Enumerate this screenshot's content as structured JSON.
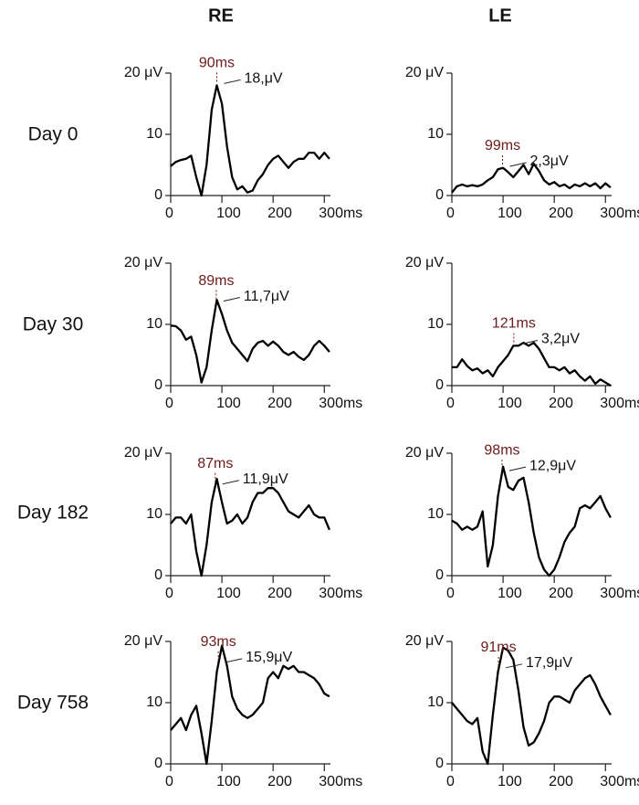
{
  "columns": [
    "RE",
    "LE"
  ],
  "rows": [
    "Day 0",
    "Day 30",
    "Day 182",
    "Day 758"
  ],
  "chart_data": [
    {
      "type": "line",
      "x": [
        0,
        10,
        20,
        30,
        40,
        50,
        60,
        70,
        80,
        90,
        100,
        110,
        120,
        130,
        140,
        150,
        160,
        170,
        180,
        190,
        200,
        210,
        220,
        230,
        240,
        250,
        260,
        270,
        280,
        290,
        300,
        310
      ],
      "values": [
        4.8,
        5.5,
        5.8,
        6.0,
        6.5,
        3,
        0,
        5,
        14,
        18,
        15,
        8,
        3,
        1,
        1.5,
        0.5,
        0.8,
        2.5,
        3.5,
        5,
        6,
        6.5,
        5.5,
        4.5,
        5.5,
        6,
        6,
        7,
        7,
        6,
        7,
        6
      ],
      "color": "#000000",
      "xlim": [
        0,
        312
      ],
      "ylim": [
        0,
        20
      ],
      "xticks": [
        0,
        100,
        200,
        {
          "value": 300,
          "label": "300ms"
        }
      ],
      "yticks": [
        0,
        10,
        {
          "value": 20,
          "label": "20 μV"
        }
      ],
      "peak": {
        "x": 90,
        "label": "90ms",
        "amplitude": "18,μV"
      }
    },
    {
      "type": "line",
      "x": [
        0,
        10,
        20,
        30,
        40,
        50,
        60,
        70,
        80,
        90,
        100,
        110,
        120,
        130,
        140,
        150,
        160,
        170,
        180,
        190,
        200,
        210,
        220,
        230,
        240,
        250,
        260,
        270,
        280,
        290,
        300,
        310
      ],
      "values": [
        0.5,
        1.5,
        1.8,
        1.5,
        1.7,
        1.5,
        1.8,
        2.5,
        3,
        4.3,
        4.5,
        3.8,
        3,
        4,
        5,
        3.5,
        5.2,
        4,
        2.5,
        1.8,
        2.2,
        1.5,
        1.8,
        1.2,
        1.8,
        1.5,
        2,
        1.5,
        2,
        1.2,
        2,
        1.3
      ],
      "color": "#000000",
      "xlim": [
        0,
        312
      ],
      "ylim": [
        0,
        20
      ],
      "xticks": [
        0,
        100,
        200,
        {
          "value": 300,
          "label": "300ms"
        }
      ],
      "yticks": [
        0,
        10,
        {
          "value": 20,
          "label": "20 μV"
        }
      ],
      "peak": {
        "x": 99,
        "label": "99ms",
        "amplitude": "2,3μV"
      }
    },
    {
      "type": "line",
      "x": [
        0,
        10,
        20,
        30,
        40,
        50,
        60,
        70,
        80,
        90,
        100,
        110,
        120,
        130,
        140,
        150,
        160,
        170,
        180,
        190,
        200,
        210,
        220,
        230,
        240,
        250,
        260,
        270,
        280,
        290,
        300,
        310
      ],
      "values": [
        9.8,
        9.7,
        9.0,
        7.5,
        8,
        5,
        0.5,
        3,
        9,
        14,
        11.7,
        9,
        7,
        6,
        5,
        4,
        6,
        7,
        7.3,
        6.5,
        7.2,
        6.5,
        5.5,
        5,
        5.5,
        4.7,
        4.2,
        5,
        6.5,
        7.3,
        6.5,
        5.5
      ],
      "color": "#000000",
      "xlim": [
        0,
        312
      ],
      "ylim": [
        0,
        20
      ],
      "xticks": [
        0,
        100,
        200,
        {
          "value": 300,
          "label": "300ms"
        }
      ],
      "yticks": [
        0,
        10,
        {
          "value": 20,
          "label": "20 μV"
        }
      ],
      "peak": {
        "x": 89,
        "label": "89ms",
        "amplitude": "11,7μV"
      }
    },
    {
      "type": "line",
      "x": [
        0,
        10,
        20,
        30,
        40,
        50,
        60,
        70,
        80,
        90,
        100,
        110,
        120,
        130,
        140,
        150,
        160,
        170,
        180,
        190,
        200,
        210,
        220,
        230,
        240,
        250,
        260,
        270,
        280,
        290,
        300,
        310
      ],
      "values": [
        3,
        3,
        4.3,
        3.2,
        2.5,
        2.8,
        2,
        2.5,
        1.5,
        3,
        4,
        5,
        6.5,
        6.5,
        7,
        6.5,
        7,
        6,
        4.5,
        3,
        3,
        2.5,
        3,
        2,
        2.5,
        1.5,
        0.8,
        1.5,
        0.3,
        1,
        0.5,
        0
      ],
      "color": "#000000",
      "xlim": [
        0,
        312
      ],
      "ylim": [
        0,
        20
      ],
      "xticks": [
        0,
        100,
        200,
        {
          "value": 300,
          "label": "300ms"
        }
      ],
      "yticks": [
        0,
        10,
        {
          "value": 20,
          "label": "20 μV"
        }
      ],
      "peak": {
        "x": 121,
        "label": "121ms",
        "amplitude": "3,2μV"
      }
    },
    {
      "type": "line",
      "x": [
        0,
        10,
        20,
        30,
        40,
        50,
        60,
        70,
        80,
        90,
        100,
        110,
        120,
        130,
        140,
        150,
        160,
        170,
        180,
        190,
        200,
        210,
        220,
        230,
        240,
        250,
        260,
        270,
        280,
        290,
        300,
        310
      ],
      "values": [
        8.5,
        9.5,
        9.5,
        8.5,
        10,
        4,
        0,
        5,
        12,
        15.8,
        12,
        8.5,
        9,
        10,
        8.5,
        9.5,
        12,
        13.5,
        13.5,
        14.3,
        14.3,
        13.5,
        12,
        10.5,
        10,
        9.5,
        10.5,
        11.5,
        10,
        9.5,
        9.5,
        7.5
      ],
      "color": "#000000",
      "xlim": [
        0,
        312
      ],
      "ylim": [
        0,
        20
      ],
      "xticks": [
        0,
        100,
        200,
        {
          "value": 300,
          "label": "300ms"
        }
      ],
      "yticks": [
        0,
        10,
        {
          "value": 20,
          "label": "20 μV"
        }
      ],
      "peak": {
        "x": 87,
        "label": "87ms",
        "amplitude": "11,9μV"
      }
    },
    {
      "type": "line",
      "x": [
        0,
        10,
        20,
        30,
        40,
        50,
        60,
        70,
        80,
        90,
        100,
        110,
        120,
        130,
        140,
        150,
        160,
        170,
        180,
        190,
        200,
        210,
        220,
        230,
        240,
        250,
        260,
        270,
        280,
        290,
        300,
        310
      ],
      "values": [
        9,
        8.5,
        7.5,
        8,
        7.5,
        8,
        10.5,
        1.5,
        5,
        13,
        17.8,
        14.5,
        14,
        15.5,
        16,
        12,
        7,
        3,
        1,
        0,
        1,
        3,
        5.5,
        7,
        8,
        11,
        11.5,
        11,
        12,
        13,
        11,
        9.5
      ],
      "color": "#000000",
      "xlim": [
        0,
        312
      ],
      "ylim": [
        0,
        20
      ],
      "xticks": [
        0,
        100,
        200,
        {
          "value": 300,
          "label": "300ms"
        }
      ],
      "yticks": [
        0,
        10,
        {
          "value": 20,
          "label": "20 μV"
        }
      ],
      "peak": {
        "x": 98,
        "label": "98ms",
        "amplitude": "12,9μV"
      }
    },
    {
      "type": "line",
      "x": [
        0,
        10,
        20,
        30,
        40,
        50,
        60,
        70,
        80,
        90,
        100,
        110,
        120,
        130,
        140,
        150,
        160,
        170,
        180,
        190,
        200,
        210,
        220,
        230,
        240,
        250,
        260,
        270,
        280,
        290,
        300,
        310
      ],
      "values": [
        5.5,
        6.5,
        7.5,
        5.5,
        8,
        9.5,
        5,
        0,
        7,
        15,
        19.3,
        16,
        11,
        9,
        8,
        7.5,
        8,
        9,
        10,
        14,
        15,
        14,
        16,
        15.5,
        16,
        15,
        15,
        14.5,
        14,
        13,
        11.5,
        11
      ],
      "color": "#000000",
      "xlim": [
        0,
        312
      ],
      "ylim": [
        0,
        20
      ],
      "xticks": [
        0,
        100,
        200,
        {
          "value": 300,
          "label": "300ms"
        }
      ],
      "yticks": [
        0,
        10,
        {
          "value": 20,
          "label": "20 μV"
        }
      ],
      "peak": {
        "x": 93,
        "label": "93ms",
        "amplitude": "15,9μV"
      }
    },
    {
      "type": "line",
      "x": [
        0,
        10,
        20,
        30,
        40,
        50,
        60,
        70,
        80,
        90,
        100,
        110,
        120,
        130,
        140,
        150,
        160,
        170,
        180,
        190,
        200,
        210,
        220,
        230,
        240,
        250,
        260,
        270,
        280,
        290,
        300,
        310
      ],
      "values": [
        10,
        9,
        8,
        7,
        6.5,
        7.5,
        2,
        0,
        8,
        15,
        19,
        18.5,
        17,
        12,
        6,
        3,
        3.5,
        5,
        7,
        10,
        11,
        11,
        10.5,
        10,
        12,
        13,
        14,
        14.5,
        13,
        11,
        9.5,
        8
      ],
      "color": "#000000",
      "xlim": [
        0,
        312
      ],
      "ylim": [
        0,
        20
      ],
      "xticks": [
        0,
        100,
        200,
        {
          "value": 300,
          "label": "300ms"
        }
      ],
      "yticks": [
        0,
        10,
        {
          "value": 20,
          "label": "20 μV"
        }
      ],
      "peak": {
        "x": 91,
        "label": "91ms",
        "amplitude": "17,9μV"
      }
    }
  ]
}
